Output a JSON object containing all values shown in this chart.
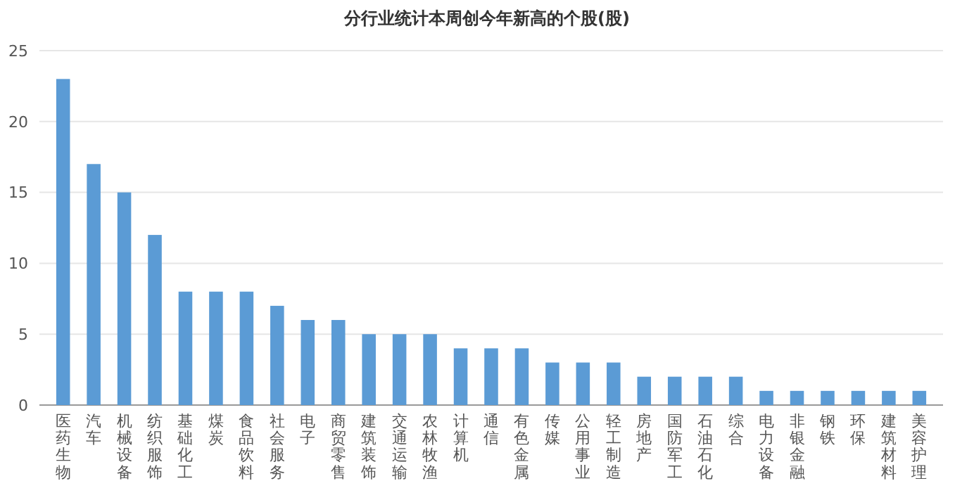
{
  "chart_data": {
    "type": "bar",
    "title": "分行业统计本周创今年新高的个股(股)",
    "categories": [
      "医药生物",
      "汽车",
      "机械设备",
      "纺织服饰",
      "基础化工",
      "煤炭",
      "食品饮料",
      "社会服务",
      "电子",
      "商贸零售",
      "建筑装饰",
      "交通运输",
      "农林牧渔",
      "计算机",
      "通信",
      "有色金属",
      "传媒",
      "公用事业",
      "轻工制造",
      "房地产",
      "国防军工",
      "石油石化",
      "综合",
      "电力设备",
      "非银金融",
      "钢铁",
      "环保",
      "建筑材料",
      "美容护理"
    ],
    "values": [
      23,
      17,
      15,
      12,
      8,
      8,
      8,
      7,
      6,
      6,
      5,
      5,
      5,
      4,
      4,
      4,
      3,
      3,
      3,
      2,
      2,
      2,
      2,
      1,
      1,
      1,
      1,
      1,
      1
    ],
    "color": "#5b9bd5",
    "ylim": [
      0,
      25
    ],
    "yticks": [
      0,
      5,
      10,
      15,
      20,
      25
    ],
    "grid": "y"
  }
}
